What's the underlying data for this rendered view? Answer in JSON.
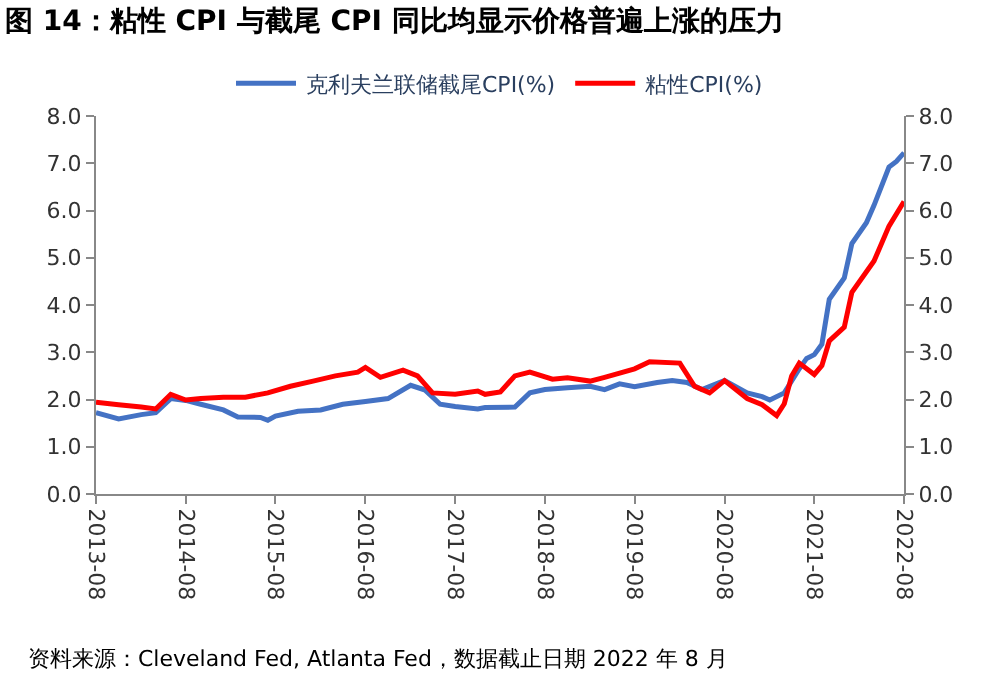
{
  "chart_data": {
    "type": "line",
    "title": "图 14：粘性 CPI 与截尾 CPI 同比均显示价格普遍上涨的压力",
    "annotations": [
      "资料来源：Cleveland Fed, Atlanta Fed，数据截止日期 2022 年 8 月"
    ],
    "series": [
      {
        "name": "克利夫兰联储截尾CPI(%)",
        "color": "#4472c4",
        "x": [
          "2013-08",
          "2013-11",
          "2014-02",
          "2014-04",
          "2014-06",
          "2014-08",
          "2014-10",
          "2015-01",
          "2015-03",
          "2015-06",
          "2015-07",
          "2015-08",
          "2015-11",
          "2016-02",
          "2016-05",
          "2016-08",
          "2016-11",
          "2017-02",
          "2017-04",
          "2017-06",
          "2017-08",
          "2017-11",
          "2017-12",
          "2018-04",
          "2018-06",
          "2018-08",
          "2018-11",
          "2019-02",
          "2019-04",
          "2019-06",
          "2019-08",
          "2019-11",
          "2020-01",
          "2020-03",
          "2020-05",
          "2020-08",
          "2020-11",
          "2021-01",
          "2021-02",
          "2021-04",
          "2021-06",
          "2021-07",
          "2021-08",
          "2021-09",
          "2021-10",
          "2021-12",
          "2022-01",
          "2022-03",
          "2022-04",
          "2022-06",
          "2022-07",
          "2022-08"
        ],
        "values": [
          1.72,
          1.59,
          1.68,
          1.72,
          2.02,
          1.98,
          1.9,
          1.78,
          1.63,
          1.62,
          1.56,
          1.65,
          1.75,
          1.78,
          1.9,
          1.96,
          2.02,
          2.3,
          2.2,
          1.9,
          1.85,
          1.8,
          1.83,
          1.84,
          2.14,
          2.21,
          2.25,
          2.28,
          2.21,
          2.33,
          2.27,
          2.36,
          2.4,
          2.36,
          2.21,
          2.4,
          2.14,
          2.06,
          1.99,
          2.14,
          2.65,
          2.87,
          2.95,
          3.17,
          4.12,
          4.57,
          5.3,
          5.74,
          6.11,
          6.92,
          7.04,
          7.22
        ]
      },
      {
        "name": "粘性CPI(%)",
        "color": "#ff0000",
        "axis": "y2",
        "x": [
          "2013-08",
          "2013-11",
          "2014-02",
          "2014-04",
          "2014-06",
          "2014-08",
          "2014-10",
          "2015-01",
          "2015-04",
          "2015-07",
          "2015-10",
          "2016-01",
          "2016-04",
          "2016-07",
          "2016-08",
          "2016-10",
          "2017-01",
          "2017-03",
          "2017-05",
          "2017-08",
          "2017-11",
          "2017-12",
          "2018-02",
          "2018-04",
          "2018-06",
          "2018-09",
          "2018-11",
          "2019-02",
          "2019-04",
          "2019-08",
          "2019-10",
          "2020-02",
          "2020-04",
          "2020-06",
          "2020-08",
          "2020-11",
          "2021-01",
          "2021-03",
          "2021-04",
          "2021-05",
          "2021-06",
          "2021-08",
          "2021-09",
          "2021-10",
          "2021-12",
          "2022-01",
          "2022-04",
          "2022-06",
          "2022-08"
        ],
        "values": [
          1.94,
          1.89,
          1.84,
          1.8,
          2.11,
          1.99,
          2.02,
          2.05,
          2.05,
          2.14,
          2.28,
          2.39,
          2.5,
          2.58,
          2.68,
          2.47,
          2.62,
          2.5,
          2.14,
          2.11,
          2.18,
          2.11,
          2.16,
          2.5,
          2.58,
          2.43,
          2.46,
          2.39,
          2.47,
          2.65,
          2.8,
          2.77,
          2.28,
          2.14,
          2.4,
          2.02,
          1.89,
          1.66,
          1.91,
          2.5,
          2.77,
          2.53,
          2.72,
          3.24,
          3.53,
          4.27,
          4.93,
          5.67,
          6.19
        ]
      }
    ],
    "xlim": [
      "2013-08",
      "2022-08"
    ],
    "xticks": [
      "2013-08",
      "2014-08",
      "2015-08",
      "2016-08",
      "2017-08",
      "2018-08",
      "2019-08",
      "2020-08",
      "2021-08",
      "2022-08"
    ],
    "ylim": [
      0,
      8
    ],
    "yticks": [
      {
        "value": 0,
        "label": "0.0"
      },
      {
        "value": 1,
        "label": "1.0"
      },
      {
        "value": 2,
        "label": "2.0"
      },
      {
        "value": 3,
        "label": "3.0"
      },
      {
        "value": 4,
        "label": "4.0"
      },
      {
        "value": 5,
        "label": "5.0"
      },
      {
        "value": 6,
        "label": "6.0"
      },
      {
        "value": 7,
        "label": "7.0"
      },
      {
        "value": 8,
        "label": "8.0"
      }
    ],
    "y2lim": [
      0,
      8
    ],
    "y2ticks": [
      {
        "value": 0,
        "label": "0.0"
      },
      {
        "value": 1,
        "label": "1.0"
      },
      {
        "value": 2,
        "label": "2.0"
      },
      {
        "value": 3,
        "label": "3.0"
      },
      {
        "value": 4,
        "label": "4.0"
      },
      {
        "value": 5,
        "label": "5.0"
      },
      {
        "value": 6,
        "label": "6.0"
      },
      {
        "value": 7,
        "label": "7.0"
      },
      {
        "value": 8,
        "label": "8.0"
      }
    ],
    "legend": "top",
    "marker": "none",
    "line_style": "solid"
  }
}
